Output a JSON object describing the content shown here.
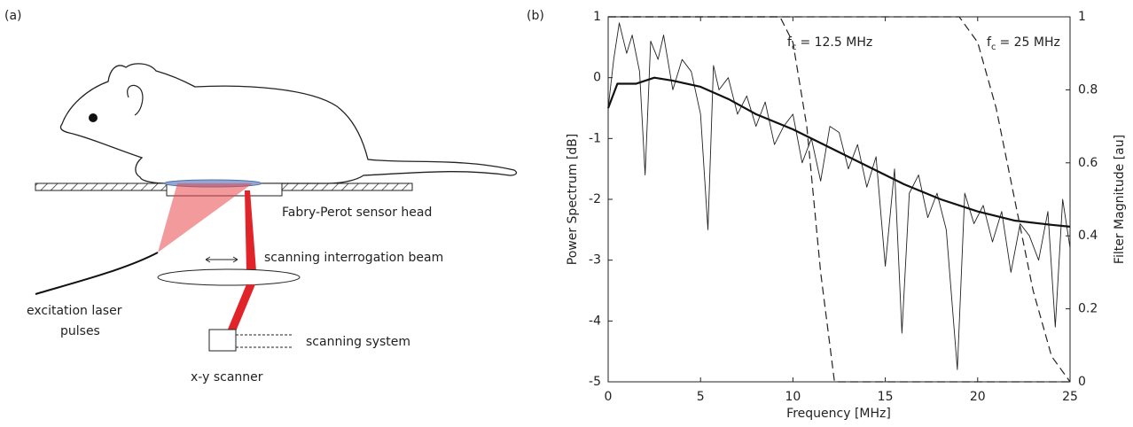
{
  "panel_a": {
    "panel_label": "(a)",
    "labels": [
      "Fabry-Perot sensor head",
      "scanning interrogation beam",
      "excitation laser",
      "pulses",
      "scanning system",
      "x-y scanner"
    ]
  },
  "chart_data": {
    "type": "line",
    "panel_label": "(b)",
    "xlabel": "Frequency [MHz]",
    "ylabel": "Power Spectrum [dB]",
    "y2label": "Filter Magnitude [au]",
    "xlim": [
      0,
      25
    ],
    "xticks": [
      0,
      5,
      10,
      15,
      20,
      25
    ],
    "ylim": [
      -5,
      1
    ],
    "yticks": [
      -5,
      -4,
      -3,
      -2,
      -1,
      0,
      1
    ],
    "y2lim": [
      0,
      1
    ],
    "y2ticks": [
      0,
      0.2,
      0.4,
      0.6,
      0.8,
      1
    ],
    "grid": false,
    "annotations": [
      {
        "symbol": "f",
        "subscript": "c",
        "text": "= 12.5 MHz"
      },
      {
        "symbol": "f",
        "subscript": "c",
        "text": "= 25 MHz"
      }
    ],
    "series": [
      {
        "color": "#222222",
        "width": 0.9,
        "dash": false,
        "axis": "y",
        "x": [
          0,
          0.3,
          0.6,
          1,
          1.3,
          1.7,
          2,
          2.3,
          2.7,
          3,
          3.5,
          4,
          4.5,
          5,
          5.4,
          5.7,
          6,
          6.5,
          7,
          7.5,
          8,
          8.5,
          9,
          9.5,
          10,
          10.5,
          11,
          11.5,
          12,
          12.5,
          13,
          13.5,
          14,
          14.5,
          15,
          15.5,
          15.9,
          16.3,
          16.8,
          17.3,
          17.8,
          18.3,
          18.9,
          19.3,
          19.8,
          20.3,
          20.8,
          21.3,
          21.8,
          22.3,
          22.8,
          23.3,
          23.8,
          24.2,
          24.6,
          25
        ],
        "values": [
          -0.5,
          0.3,
          0.9,
          0.4,
          0.7,
          0.1,
          -1.6,
          0.6,
          0.3,
          0.7,
          -0.2,
          0.3,
          0.1,
          -0.6,
          -2.5,
          0.2,
          -0.2,
          0,
          -0.6,
          -0.3,
          -0.8,
          -0.4,
          -1.1,
          -0.8,
          -0.6,
          -1.4,
          -1.0,
          -1.7,
          -0.8,
          -0.9,
          -1.5,
          -1.1,
          -1.8,
          -1.3,
          -3.1,
          -1.5,
          -4.2,
          -1.9,
          -1.6,
          -2.3,
          -1.9,
          -2.5,
          -4.8,
          -1.9,
          -2.4,
          -2.1,
          -2.7,
          -2.2,
          -3.2,
          -2.4,
          -2.6,
          -3.0,
          -2.2,
          -4.1,
          -2.0,
          -2.8
        ]
      },
      {
        "color": "#111111",
        "width": 2.2,
        "dash": false,
        "axis": "y",
        "x": [
          0,
          0.5,
          1.5,
          2.5,
          3.5,
          5,
          6.5,
          8,
          10,
          12,
          14,
          16,
          18,
          20,
          22,
          24,
          25
        ],
        "values": [
          -0.5,
          -0.1,
          -0.1,
          0,
          -0.05,
          -0.15,
          -0.35,
          -0.6,
          -0.85,
          -1.15,
          -1.45,
          -1.75,
          -2,
          -2.2,
          -2.35,
          -2.42,
          -2.45
        ]
      },
      {
        "color": "#222222",
        "width": 1.2,
        "dash": true,
        "axis": "y2",
        "x": [
          0,
          9.3,
          10,
          10.75,
          11.5,
          12.25,
          25
        ],
        "values": [
          1,
          1,
          0.93,
          0.7,
          0.3,
          0,
          0
        ]
      },
      {
        "color": "#222222",
        "width": 1.2,
        "dash": true,
        "axis": "y2",
        "x": [
          0,
          19,
          20,
          21,
          22,
          23,
          24,
          25
        ],
        "values": [
          1,
          1,
          0.93,
          0.75,
          0.5,
          0.25,
          0.07,
          0
        ]
      }
    ]
  }
}
